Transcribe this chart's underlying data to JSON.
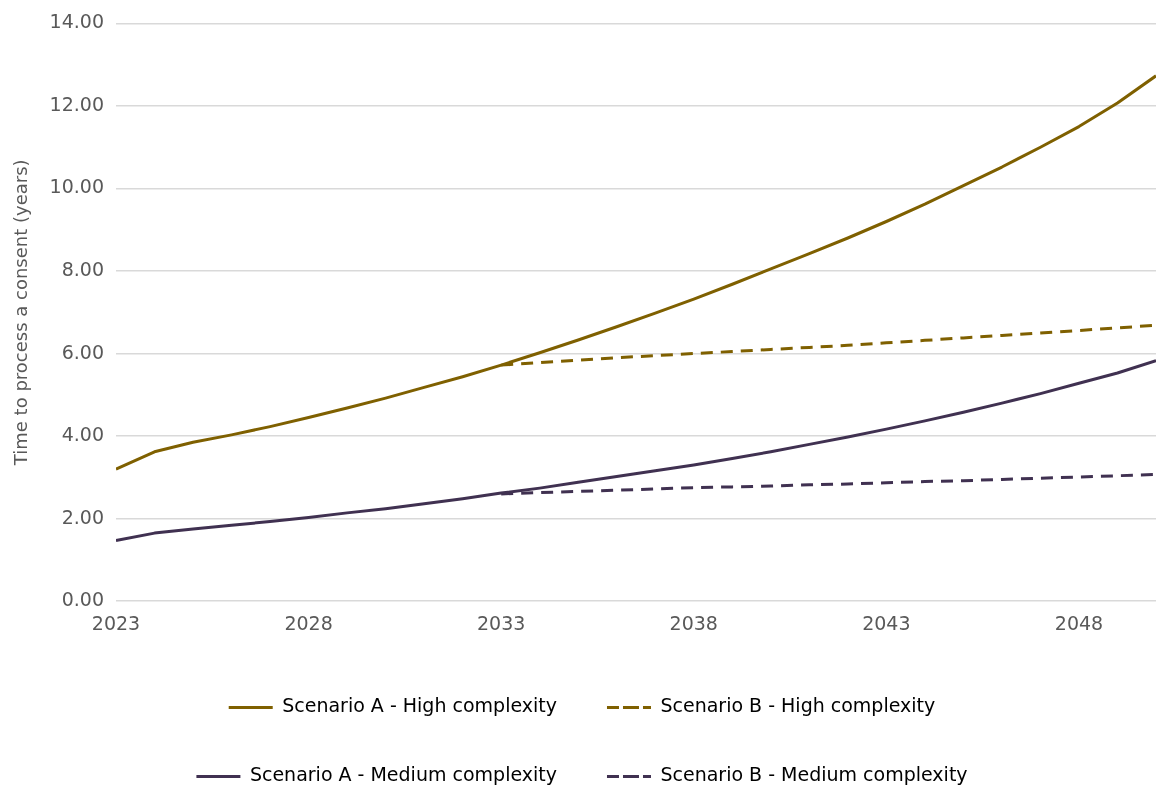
{
  "chart_data": {
    "type": "line",
    "ylabel": "Time to process a consent (years)",
    "x": [
      2023,
      2024,
      2025,
      2026,
      2027,
      2028,
      2029,
      2030,
      2031,
      2032,
      2033,
      2034,
      2035,
      2036,
      2037,
      2038,
      2039,
      2040,
      2041,
      2042,
      2043,
      2044,
      2045,
      2046,
      2047,
      2048,
      2049,
      2050
    ],
    "xlim": [
      2023,
      2050
    ],
    "xticks": [
      2023,
      2028,
      2033,
      2038,
      2043,
      2048
    ],
    "ylim": [
      0,
      14
    ],
    "yticks": [
      {
        "value": 0,
        "label": "0.00"
      },
      {
        "value": 2,
        "label": "2.00"
      },
      {
        "value": 4,
        "label": "4.00"
      },
      {
        "value": 6,
        "label": "6.00"
      },
      {
        "value": 8,
        "label": "8.00"
      },
      {
        "value": 10,
        "label": "10.00"
      },
      {
        "value": 12,
        "label": "12.00"
      },
      {
        "value": 14,
        "label": "14.00"
      }
    ],
    "grid": "y",
    "legend": "bottom",
    "marker": "none",
    "series": [
      {
        "name": "Scenario A - High complexity",
        "color": "#7f6000",
        "line_style": "solid",
        "values": [
          3.2,
          3.62,
          3.85,
          4.03,
          4.23,
          4.45,
          4.68,
          4.92,
          5.18,
          5.44,
          5.72,
          6.02,
          6.33,
          6.65,
          6.98,
          7.32,
          7.68,
          8.05,
          8.42,
          8.8,
          9.2,
          9.62,
          10.07,
          10.52,
          11.0,
          11.5,
          12.07,
          12.73
        ]
      },
      {
        "name": "Scenario B - High complexity",
        "color": "#7f6000",
        "line_style": "dashed",
        "values": [
          null,
          null,
          null,
          null,
          null,
          null,
          null,
          null,
          null,
          null,
          5.72,
          5.78,
          5.84,
          5.9,
          5.95,
          6.0,
          6.05,
          6.1,
          6.15,
          6.2,
          6.26,
          6.32,
          6.38,
          6.44,
          6.5,
          6.56,
          6.62,
          6.69
        ]
      },
      {
        "name": "Scenario A - Medium complexity",
        "color": "#403151",
        "line_style": "solid",
        "values": [
          1.47,
          1.65,
          1.75,
          1.84,
          1.93,
          2.03,
          2.14,
          2.24,
          2.36,
          2.48,
          2.62,
          2.74,
          2.88,
          3.02,
          3.16,
          3.3,
          3.46,
          3.62,
          3.8,
          3.98,
          4.17,
          4.37,
          4.58,
          4.8,
          5.03,
          5.28,
          5.53,
          5.83
        ]
      },
      {
        "name": "Scenario B - Medium complexity",
        "color": "#403151",
        "line_style": "dashed",
        "values": [
          null,
          null,
          null,
          null,
          null,
          null,
          null,
          null,
          null,
          null,
          2.6,
          2.63,
          2.66,
          2.69,
          2.72,
          2.75,
          2.77,
          2.79,
          2.82,
          2.84,
          2.87,
          2.9,
          2.92,
          2.95,
          2.98,
          3.01,
          3.04,
          3.07
        ]
      }
    ]
  }
}
